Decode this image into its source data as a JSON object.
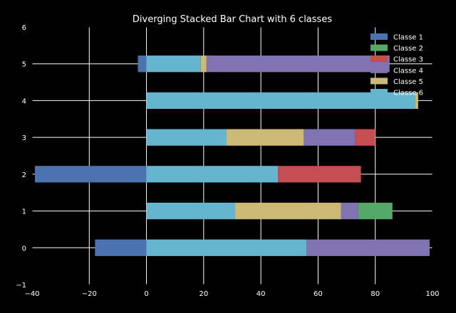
{
  "chart_data": {
    "type": "bar",
    "orientation": "horizontal",
    "stacking": "diverging",
    "title": "Diverging Stacked Bar Chart with 6 classes",
    "xlabel": "",
    "ylabel": "",
    "xlim": [
      -40,
      100
    ],
    "ylim": [
      -1,
      6
    ],
    "xticks": [
      -40,
      -20,
      0,
      20,
      40,
      60,
      80,
      100
    ],
    "yticks": [
      -1,
      0,
      1,
      2,
      3,
      4,
      5,
      6
    ],
    "grid": true,
    "legend_position": "top-right",
    "categories": [
      0,
      1,
      2,
      3,
      4,
      5
    ],
    "series": [
      {
        "name": "Classe 1",
        "color": "#4c72b0",
        "values": [
          -18,
          0,
          -39,
          0,
          0,
          -3
        ]
      },
      {
        "name": "Classe 2",
        "color": "#55a868",
        "values": [
          0,
          12,
          0,
          0,
          0,
          0
        ]
      },
      {
        "name": "Classe 3",
        "color": "#c44e52",
        "values": [
          0,
          0,
          29,
          7,
          0,
          0
        ]
      },
      {
        "name": "Classe 4",
        "color": "#8172b2",
        "values": [
          43,
          6,
          0,
          18,
          0,
          64
        ]
      },
      {
        "name": "Classe 5",
        "color": "#ccb974",
        "values": [
          0,
          37,
          0,
          27,
          1,
          2
        ]
      },
      {
        "name": "Classe 6",
        "color": "#64b5cd",
        "values": [
          56,
          31,
          46,
          28,
          94,
          19
        ]
      }
    ],
    "stack_order_positive": [
      "Classe 6",
      "Classe 5",
      "Classe 4",
      "Classe 3",
      "Classe 2"
    ]
  }
}
